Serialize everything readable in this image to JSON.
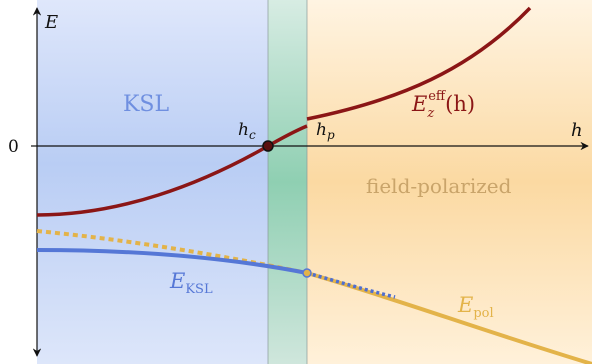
{
  "regions": {
    "ksl": {
      "label": "KSL",
      "color": "#6f8fe0"
    },
    "intermediate": {
      "color": "#4fb389"
    },
    "polarized": {
      "label": "field-polarized",
      "color": "#f0b14a"
    }
  },
  "axes": {
    "y_label": "E",
    "x_label": "h",
    "zero_label": "0"
  },
  "markers": {
    "hc": {
      "base": "h",
      "sub": "c"
    },
    "hp": {
      "base": "h",
      "sub": "p"
    }
  },
  "curves": {
    "ez": {
      "base": "E",
      "sub": "z",
      "sup": "eff",
      "arg": "(h)",
      "color": "#8b1616"
    },
    "eksl": {
      "base": "E",
      "sub": "KSL",
      "color": "#5577d6"
    },
    "epol": {
      "base": "E",
      "sub": "pol",
      "color": "#e3b349"
    }
  }
}
